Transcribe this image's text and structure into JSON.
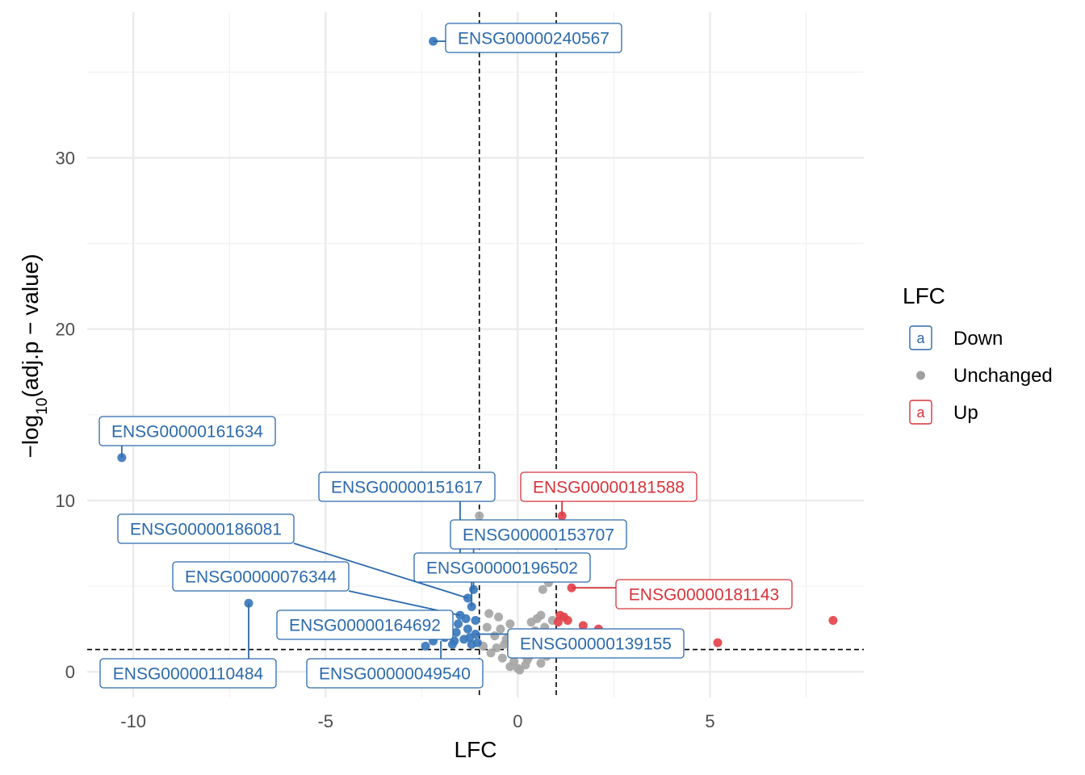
{
  "chart_data": {
    "type": "scatter",
    "title": "",
    "xlabel": "LFC",
    "ylabel": {
      "prefix": "−log",
      "subscript": "10",
      "suffix": "(adj.p − value)"
    },
    "xlim": [
      -11.2,
      9.0
    ],
    "ylim": [
      -1.5,
      38.5
    ],
    "x_ticks": [
      {
        "value": -10,
        "label": "-10"
      },
      {
        "value": -5,
        "label": "-5"
      },
      {
        "value": 0,
        "label": "0"
      },
      {
        "value": 5,
        "label": "5"
      }
    ],
    "y_ticks": [
      {
        "value": 0,
        "label": "0"
      },
      {
        "value": 10,
        "label": "10"
      },
      {
        "value": 20,
        "label": "20"
      },
      {
        "value": 30,
        "label": "30"
      }
    ],
    "grid": true,
    "thresholds": {
      "lfc": [
        -1,
        1
      ],
      "neg_log10_p": 1.3
    },
    "legend": {
      "title": "LFC",
      "position": "right",
      "entries": [
        {
          "name": "Down",
          "key": "a",
          "color": "#2c6aac"
        },
        {
          "name": "Unchanged",
          "key": "",
          "color": "#a0a0a0"
        },
        {
          "name": "Up",
          "key": "a",
          "color": "#d6343b"
        }
      ]
    },
    "colors": {
      "Down": "#3a78bc",
      "Unchanged": "#a6a6a6",
      "Up": "#e3434b"
    },
    "series": [
      {
        "name": "Down",
        "points": [
          [
            -2.2,
            36.8
          ],
          [
            -10.3,
            12.5
          ],
          [
            -7.0,
            4.0
          ],
          [
            -1.15,
            4.8
          ],
          [
            -1.3,
            4.3
          ],
          [
            -1.2,
            3.8
          ],
          [
            -1.5,
            3.3
          ],
          [
            -1.8,
            3.0
          ],
          [
            -2.0,
            2.7
          ],
          [
            -1.3,
            2.5
          ],
          [
            -1.6,
            2.3
          ],
          [
            -1.1,
            2.2
          ],
          [
            -1.9,
            2.0
          ],
          [
            -2.2,
            1.8
          ],
          [
            -1.4,
            1.9
          ],
          [
            -1.05,
            1.7
          ],
          [
            -1.7,
            1.6
          ],
          [
            -2.4,
            1.5
          ],
          [
            -1.2,
            1.6
          ],
          [
            -1.55,
            2.8
          ],
          [
            -1.25,
            2.0
          ],
          [
            -1.35,
            3.1
          ],
          [
            -1.65,
            1.8
          ],
          [
            -1.1,
            3.0
          ]
        ]
      },
      {
        "name": "Unchanged",
        "points": [
          [
            -1.0,
            9.1
          ],
          [
            0.65,
            4.8
          ],
          [
            0.8,
            5.2
          ],
          [
            -0.5,
            3.2
          ],
          [
            -0.2,
            2.8
          ],
          [
            0.2,
            2.2
          ],
          [
            0.5,
            3.1
          ],
          [
            -0.8,
            2.6
          ],
          [
            -0.6,
            2.1
          ],
          [
            0.9,
            3.0
          ],
          [
            0.4,
            1.6
          ],
          [
            -0.3,
            1.9
          ],
          [
            0.1,
            1.3
          ],
          [
            -0.9,
            1.5
          ],
          [
            0.7,
            2.6
          ],
          [
            0.3,
            0.9
          ],
          [
            -0.1,
            0.6
          ],
          [
            0.0,
            0.2
          ],
          [
            -0.4,
            0.8
          ],
          [
            0.6,
            0.5
          ],
          [
            -0.7,
            1.1
          ],
          [
            0.2,
            0.4
          ],
          [
            0.8,
            1.8
          ],
          [
            -0.2,
            0.3
          ],
          [
            0.45,
            2.4
          ],
          [
            -0.55,
            1.4
          ],
          [
            0.15,
            1.0
          ],
          [
            0.05,
            0.1
          ],
          [
            -0.35,
            1.6
          ],
          [
            0.55,
            1.2
          ],
          [
            0.25,
            0.7
          ],
          [
            -0.05,
            1.8
          ],
          [
            -0.75,
            3.4
          ],
          [
            0.35,
            2.9
          ],
          [
            0.95,
            2.2
          ],
          [
            -0.15,
            1.2
          ],
          [
            0.75,
            0.9
          ],
          [
            -0.45,
            2.5
          ],
          [
            0.1,
            2.0
          ],
          [
            0.6,
            3.3
          ]
        ]
      },
      {
        "name": "Up",
        "points": [
          [
            1.15,
            9.1
          ],
          [
            1.4,
            4.9
          ],
          [
            8.2,
            3.0
          ],
          [
            5.2,
            1.7
          ],
          [
            1.1,
            3.3
          ],
          [
            1.3,
            3.0
          ],
          [
            1.7,
            2.7
          ],
          [
            2.1,
            2.5
          ],
          [
            1.2,
            3.2
          ],
          [
            1.05,
            2.9
          ]
        ]
      }
    ],
    "annotations": [
      {
        "text": "ENSG00000240567",
        "group": "Down",
        "x": -2.2,
        "y": 36.8
      },
      {
        "text": "ENSG00000161634",
        "group": "Down",
        "x": -10.3,
        "y": 12.5
      },
      {
        "text": "ENSG00000151617",
        "group": "Down",
        "x": -1.5,
        "y": 5.4
      },
      {
        "text": "ENSG00000181588",
        "group": "Up",
        "x": 1.15,
        "y": 9.1
      },
      {
        "text": "ENSG00000186081",
        "group": "Down",
        "x": -1.3,
        "y": 4.3
      },
      {
        "text": "ENSG00000153707",
        "group": "Down",
        "x": -1.15,
        "y": 4.8
      },
      {
        "text": "ENSG00000196502",
        "group": "Down",
        "x": -1.2,
        "y": 3.8
      },
      {
        "text": "ENSG00000076344",
        "group": "Down",
        "x": -1.5,
        "y": 3.3
      },
      {
        "text": "ENSG00000181143",
        "group": "Up",
        "x": 1.4,
        "y": 4.9
      },
      {
        "text": "ENSG00000164692",
        "group": "Down",
        "x": -1.8,
        "y": 3.0
      },
      {
        "text": "ENSG00000139155",
        "group": "Down",
        "x": -1.1,
        "y": 2.2
      },
      {
        "text": "ENSG00000110484",
        "group": "Down",
        "x": -7.0,
        "y": 4.0
      },
      {
        "text": "ENSG00000049540",
        "group": "Down",
        "x": -2.0,
        "y": 1.8
      }
    ]
  }
}
